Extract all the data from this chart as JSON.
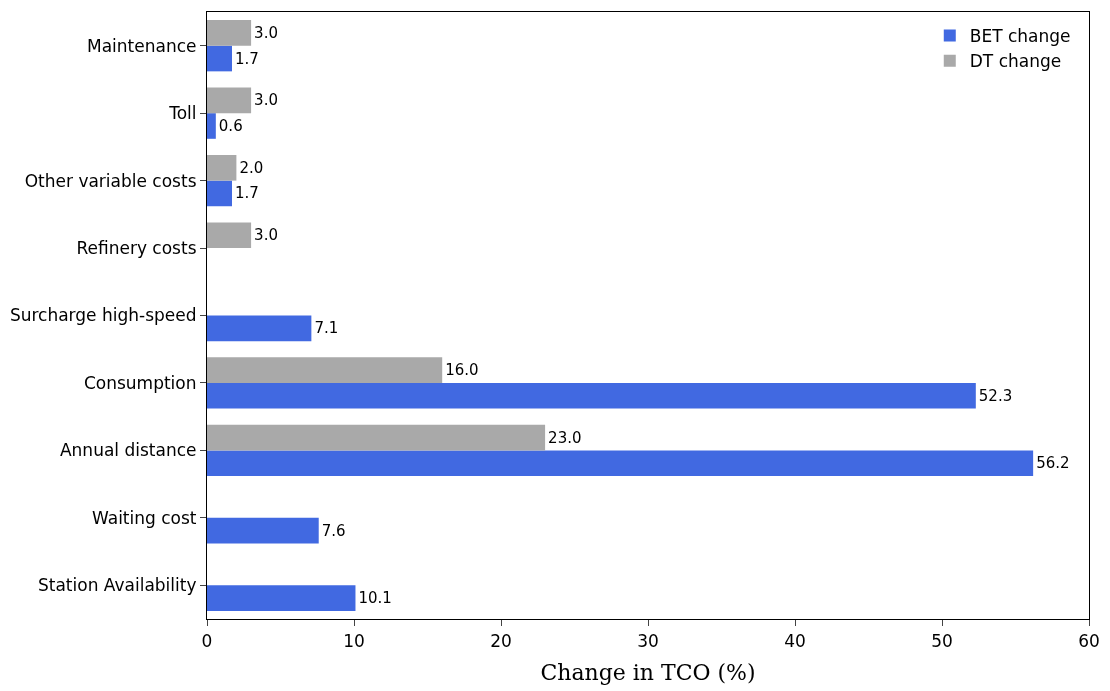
{
  "chart_data": {
    "type": "bar",
    "orientation": "horizontal",
    "xlabel": "Change in TCO (%)",
    "categories": [
      "Maintenance",
      "Toll",
      "Other variable costs",
      "Refinery costs",
      "Surcharge high-speed",
      "Consumption",
      "Annual distance",
      "Waiting cost",
      "Station Availability"
    ],
    "series": [
      {
        "name": "BET change",
        "color": "#4169e1",
        "values": [
          1.7,
          0.6,
          1.7,
          null,
          7.1,
          52.3,
          56.2,
          7.6,
          10.1
        ],
        "value_labels": [
          "1.7",
          "0.6",
          "1.7",
          null,
          "7.1",
          "52.3",
          "56.2",
          "7.6",
          "10.1"
        ]
      },
      {
        "name": "DT change",
        "color": "#a9a9a9",
        "values": [
          3.0,
          3.0,
          2.0,
          3.0,
          null,
          16.0,
          23.0,
          null,
          null
        ],
        "value_labels": [
          "3.0",
          "3.0",
          "2.0",
          "3.0",
          null,
          "16.0",
          "23.0",
          null,
          null
        ]
      }
    ],
    "xlim": [
      0,
      60
    ],
    "xticks": [
      0,
      10,
      20,
      30,
      40,
      50,
      60
    ],
    "legend": "top right"
  }
}
